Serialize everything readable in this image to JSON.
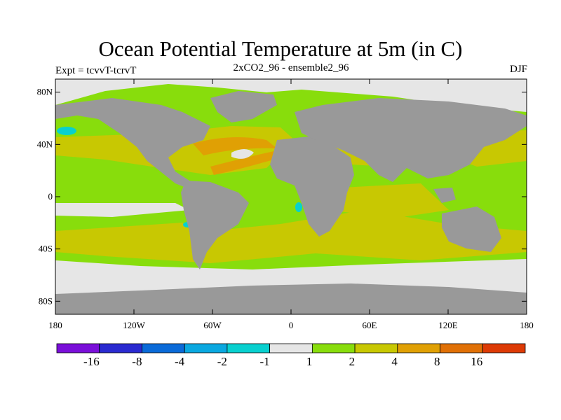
{
  "title": "Ocean Potential Temperature at 5m (in C)",
  "left_label": "Expt = tcvvT-tcrvT",
  "center_label": "2xCO2_96 - ensemble2_96",
  "right_label": "DJF",
  "map": {
    "land_color": "#999999",
    "missing_color": "#e6e6e6",
    "lon_ticks": [
      "180",
      "120W",
      "60W",
      "0",
      "60E",
      "120E",
      "180"
    ],
    "lat_ticks": [
      "80N",
      "40N",
      "0",
      "40S",
      "80S"
    ]
  },
  "colorbar": {
    "colors": [
      "#7a0fd9",
      "#2a2ad0",
      "#0a6ad8",
      "#0aa8e0",
      "#08d0cf",
      "#e6e6e6",
      "#88dd0c",
      "#c8c802",
      "#e0a004",
      "#e07006",
      "#dd3a05"
    ],
    "labels": [
      "-16",
      "-8",
      "-4",
      "-2",
      "-1",
      "1",
      "2",
      "4",
      "8",
      "16"
    ]
  }
}
